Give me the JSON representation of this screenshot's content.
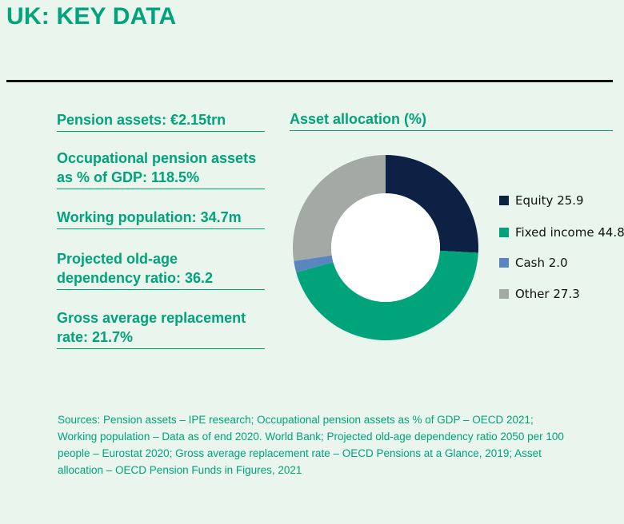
{
  "header": {
    "title": "UK: KEY DATA"
  },
  "stats": [
    "Pension assets: €2.15trn",
    "Occupational pension assets as % of GDP: 118.5%",
    "Working population: 34.7m",
    "Projected old-age dependency ratio: 36.2",
    "Gross average replacement rate: 21.7%"
  ],
  "legend": [
    {
      "label": "Equity 25.9",
      "color": "#0d2145"
    },
    {
      "label": "Fixed income 44.8",
      "color": "#00a37a"
    },
    {
      "label": "Cash 2.0",
      "color": "#5a86c0"
    },
    {
      "label": "Other 27.3",
      "color": "#a3aaa6"
    }
  ],
  "chart_data": {
    "type": "pie",
    "title": "Asset allocation (%)",
    "categories": [
      "Equity",
      "Fixed income",
      "Cash",
      "Other"
    ],
    "values": [
      25.9,
      44.8,
      2.0,
      27.3
    ],
    "colors": [
      "#0d2145",
      "#00a37a",
      "#5a86c0",
      "#a3aaa6"
    ],
    "legend_position": "right"
  },
  "footer": {
    "sources": "Sources: Pension assets – IPE research; Occupational pension assets as % of GDP – OECD 2021; Working population – Data as of end 2020. World Bank; Projected old-age dependency ratio 2050 per 100 people – Eurostat 2020; Gross average replacement rate – OECD Pensions at a Glance, 2019; Asset allocation – OECD Pension Funds in Figures, 2021"
  }
}
